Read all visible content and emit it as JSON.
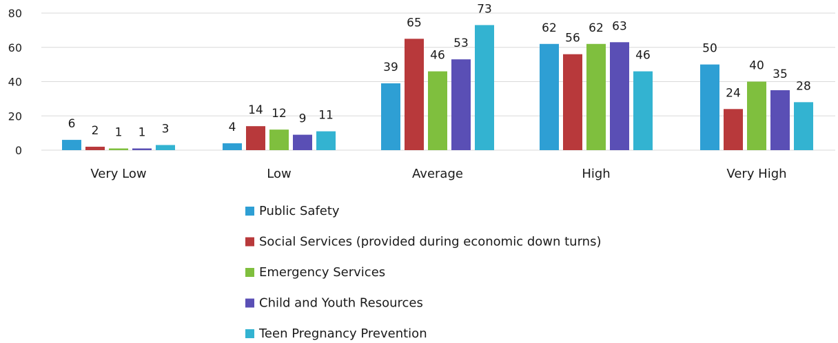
{
  "chart_data": {
    "type": "bar",
    "title": "",
    "xlabel": "",
    "ylabel": "",
    "ylim": [
      0,
      80
    ],
    "yticks": [
      0,
      20,
      40,
      60,
      80
    ],
    "grid": true,
    "legend_position": "bottom",
    "categories": [
      "Very Low",
      "Low",
      "Average",
      "High",
      "Very High"
    ],
    "series": [
      {
        "name": "Public Safety",
        "color": "#2e9fd4",
        "values": [
          6,
          4,
          39,
          62,
          50
        ]
      },
      {
        "name": "Social Services (provided during economic down turns)",
        "color": "#b8393b",
        "values": [
          2,
          14,
          65,
          56,
          24
        ]
      },
      {
        "name": "Emergency Services",
        "color": "#7fbf3e",
        "values": [
          1,
          12,
          46,
          62,
          40
        ]
      },
      {
        "name": "Child and Youth Resources",
        "color": "#5a4fb5",
        "values": [
          1,
          9,
          53,
          63,
          35
        ]
      },
      {
        "name": "Teen Pregnancy Prevention",
        "color": "#33b3d1",
        "values": [
          3,
          11,
          73,
          46,
          28
        ]
      }
    ]
  }
}
